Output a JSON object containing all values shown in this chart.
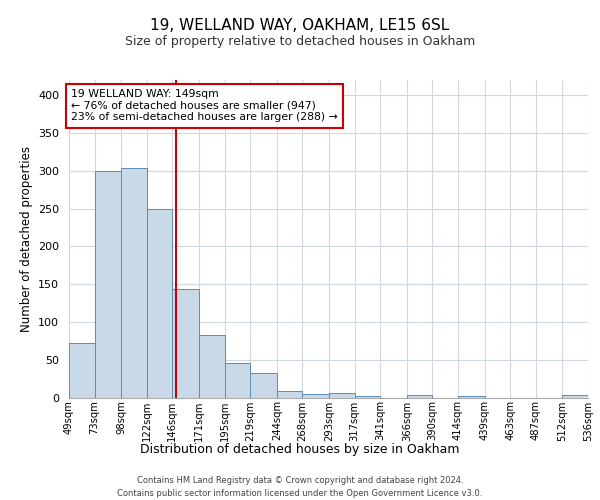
{
  "title1": "19, WELLAND WAY, OAKHAM, LE15 6SL",
  "title2": "Size of property relative to detached houses in Oakham",
  "xlabel": "Distribution of detached houses by size in Oakham",
  "ylabel": "Number of detached properties",
  "footer1": "Contains HM Land Registry data © Crown copyright and database right 2024.",
  "footer2": "Contains public sector information licensed under the Open Government Licence v3.0.",
  "annotation_line1": "19 WELLAND WAY: 149sqm",
  "annotation_line2": "← 76% of detached houses are smaller (947)",
  "annotation_line3": "23% of semi-detached houses are larger (288) →",
  "subject_size": 149,
  "bar_color": "#c9d9e8",
  "bar_edge_color": "#5b8db8",
  "red_line_color": "#cc0000",
  "grid_color": "#d0d8e4",
  "bin_edges": [
    49,
    73,
    98,
    122,
    146,
    171,
    195,
    219,
    244,
    268,
    293,
    317,
    341,
    366,
    390,
    414,
    439,
    463,
    487,
    512,
    536
  ],
  "bin_labels": [
    "49sqm",
    "73sqm",
    "98sqm",
    "122sqm",
    "146sqm",
    "171sqm",
    "195sqm",
    "219sqm",
    "244sqm",
    "268sqm",
    "293sqm",
    "317sqm",
    "341sqm",
    "366sqm",
    "390sqm",
    "414sqm",
    "439sqm",
    "463sqm",
    "487sqm",
    "512sqm",
    "536sqm"
  ],
  "bar_heights": [
    72,
    300,
    304,
    249,
    143,
    83,
    45,
    32,
    8,
    5,
    6,
    2,
    0,
    3,
    0,
    2,
    0,
    0,
    0,
    3
  ],
  "ylim": [
    0,
    420
  ],
  "yticks": [
    0,
    50,
    100,
    150,
    200,
    250,
    300,
    350,
    400
  ]
}
